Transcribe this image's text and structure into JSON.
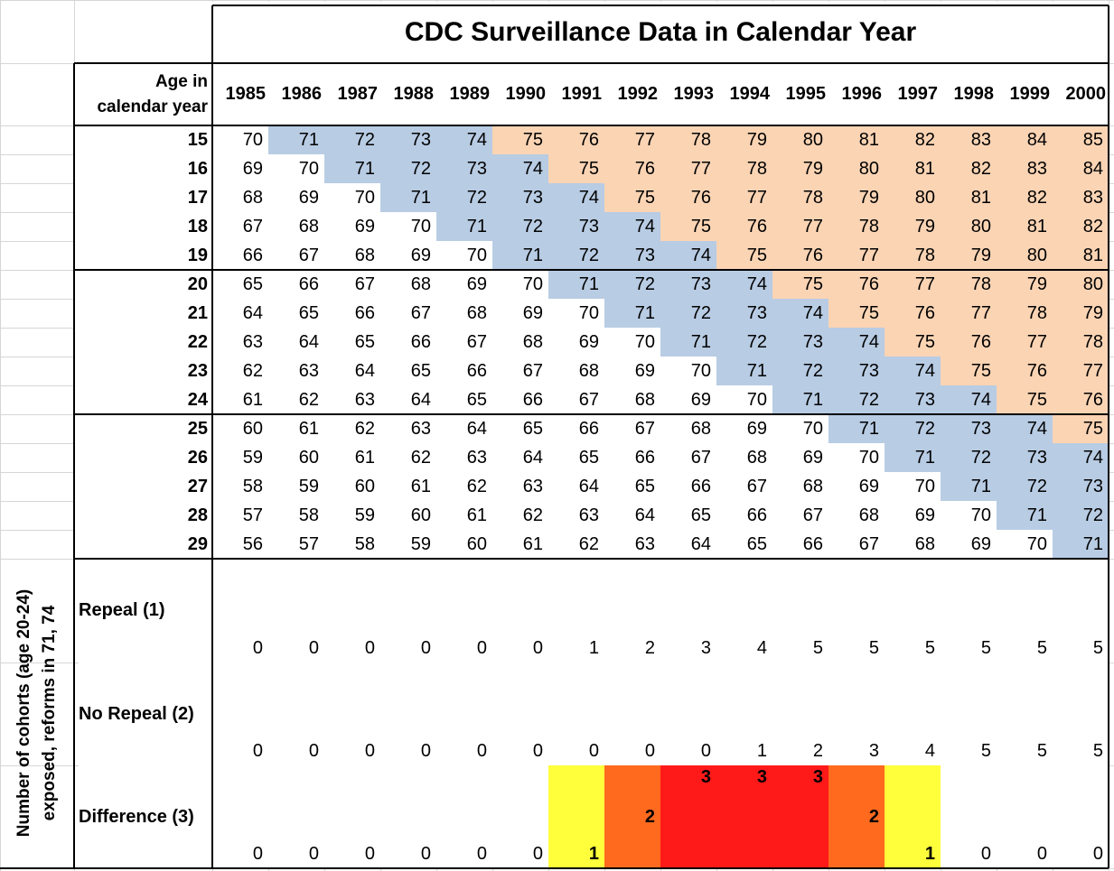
{
  "title": "CDC Surveillance Data in Calendar Year",
  "header_label_line1": "Age in",
  "header_label_line2": "calendar year",
  "years": [
    "1985",
    "1986",
    "1987",
    "1988",
    "1989",
    "1990",
    "1991",
    "1992",
    "1993",
    "1994",
    "1995",
    "1996",
    "1997",
    "1998",
    "1999",
    "2000"
  ],
  "ages": [
    "15",
    "16",
    "17",
    "18",
    "19",
    "20",
    "21",
    "22",
    "23",
    "24",
    "25",
    "26",
    "27",
    "28",
    "29"
  ],
  "age_by_year": [
    [
      70,
      71,
      72,
      73,
      74,
      75,
      76,
      77,
      78,
      79,
      80,
      81,
      82,
      83,
      84,
      85
    ],
    [
      69,
      70,
      71,
      72,
      73,
      74,
      75,
      76,
      77,
      78,
      79,
      80,
      81,
      82,
      83,
      84
    ],
    [
      68,
      69,
      70,
      71,
      72,
      73,
      74,
      75,
      76,
      77,
      78,
      79,
      80,
      81,
      82,
      83
    ],
    [
      67,
      68,
      69,
      70,
      71,
      72,
      73,
      74,
      75,
      76,
      77,
      78,
      79,
      80,
      81,
      82
    ],
    [
      66,
      67,
      68,
      69,
      70,
      71,
      72,
      73,
      74,
      75,
      76,
      77,
      78,
      79,
      80,
      81
    ],
    [
      65,
      66,
      67,
      68,
      69,
      70,
      71,
      72,
      73,
      74,
      75,
      76,
      77,
      78,
      79,
      80
    ],
    [
      64,
      65,
      66,
      67,
      68,
      69,
      70,
      71,
      72,
      73,
      74,
      75,
      76,
      77,
      78,
      79
    ],
    [
      63,
      64,
      65,
      66,
      67,
      68,
      69,
      70,
      71,
      72,
      73,
      74,
      75,
      76,
      77,
      78
    ],
    [
      62,
      63,
      64,
      65,
      66,
      67,
      68,
      69,
      70,
      71,
      72,
      73,
      74,
      75,
      76,
      77
    ],
    [
      61,
      62,
      63,
      64,
      65,
      66,
      67,
      68,
      69,
      70,
      71,
      72,
      73,
      74,
      75,
      76
    ],
    [
      60,
      61,
      62,
      63,
      64,
      65,
      66,
      67,
      68,
      69,
      70,
      71,
      72,
      73,
      74,
      75
    ],
    [
      59,
      60,
      61,
      62,
      63,
      64,
      65,
      66,
      67,
      68,
      69,
      70,
      71,
      72,
      73,
      74
    ],
    [
      58,
      59,
      60,
      61,
      62,
      63,
      64,
      65,
      66,
      67,
      68,
      69,
      70,
      71,
      72,
      73
    ],
    [
      57,
      58,
      59,
      60,
      61,
      62,
      63,
      64,
      65,
      66,
      67,
      68,
      69,
      70,
      71,
      72
    ],
    [
      56,
      57,
      58,
      59,
      60,
      61,
      62,
      63,
      64,
      65,
      66,
      67,
      68,
      69,
      70,
      71
    ]
  ],
  "color_rule": {
    "reform_low": 71,
    "reform_high": 74
  },
  "colors": {
    "before": "#ffffff",
    "window": "#b8cce4",
    "after": "#fbd4b4",
    "diff_1": "#ffff3c",
    "diff_2": "#ff6a1e",
    "diff_3": "#ff1a1a"
  },
  "side_label_line1": "Number of cohorts (age 20-24)",
  "side_label_line2": "exposed, reforms in 71, 74",
  "summary_rows": [
    {
      "label": "Repeal (1)",
      "values": [
        "0",
        "0",
        "0",
        "0",
        "0",
        "0",
        "1",
        "2",
        "3",
        "4",
        "5",
        "5",
        "5",
        "5",
        "5",
        "5"
      ]
    },
    {
      "label": "No Repeal (2)",
      "values": [
        "0",
        "0",
        "0",
        "0",
        "0",
        "0",
        "0",
        "0",
        "0",
        "1",
        "2",
        "3",
        "4",
        "5",
        "5",
        "5"
      ]
    },
    {
      "label": "Difference (3)",
      "values": [
        "0",
        "0",
        "0",
        "0",
        "0",
        "0",
        "1",
        "2",
        "3",
        "3",
        "3",
        "2",
        "1",
        "0",
        "0",
        "0"
      ]
    }
  ]
}
